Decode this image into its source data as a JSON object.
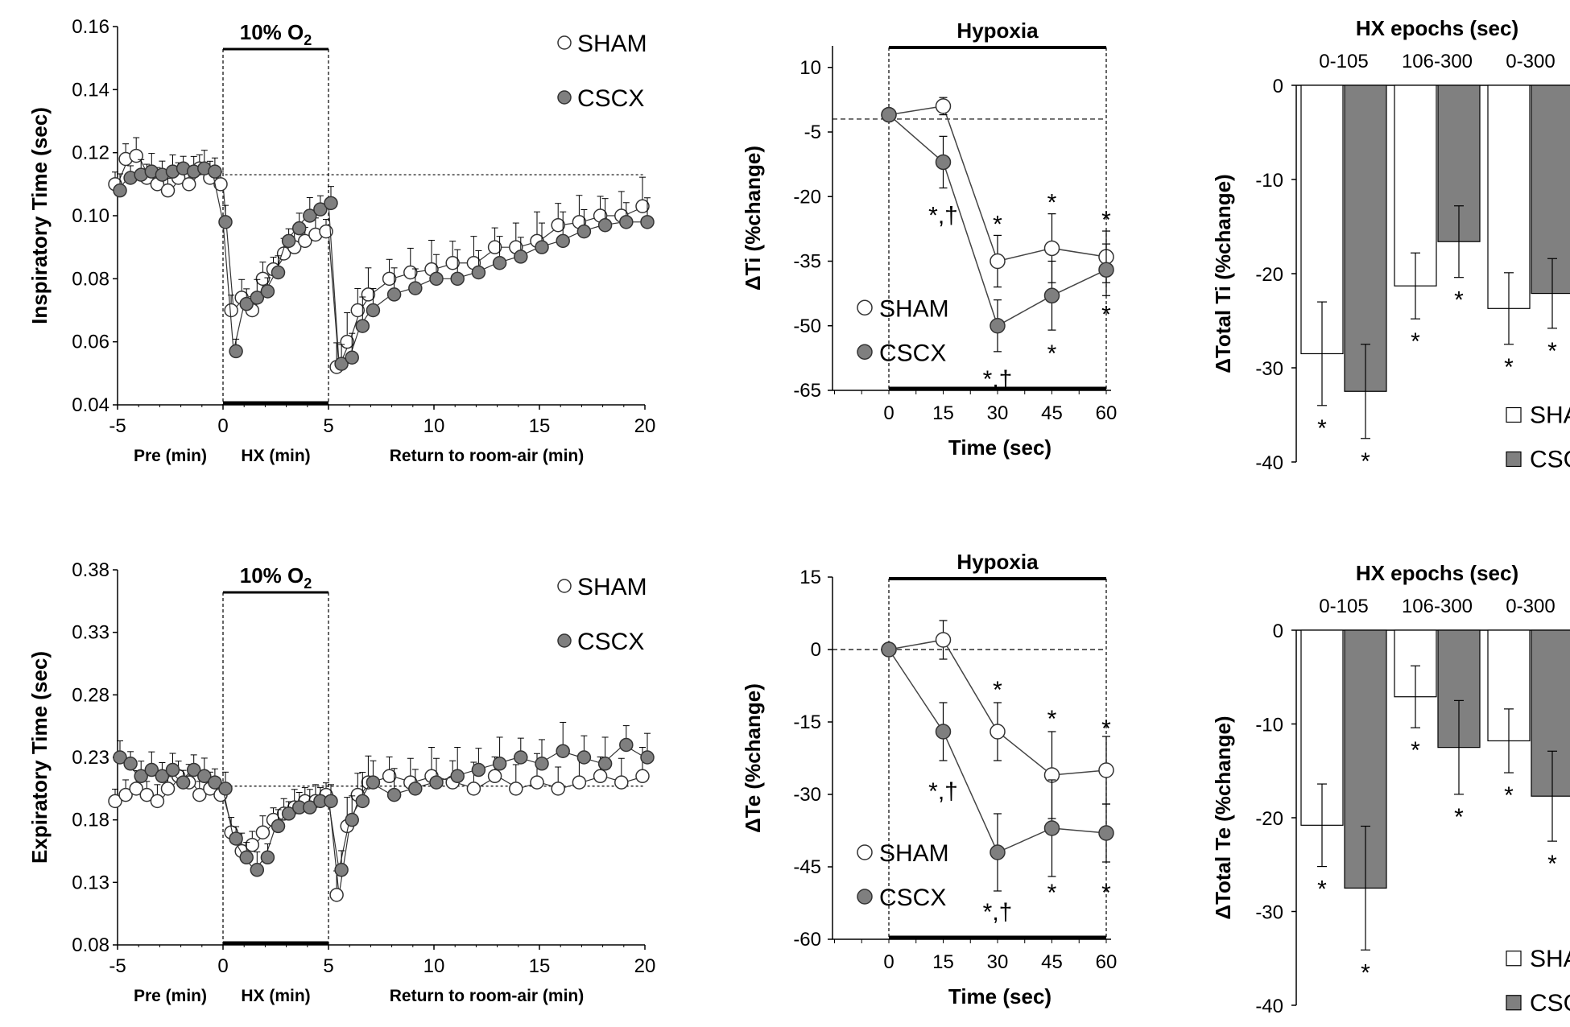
{
  "figure": {
    "legend": {
      "sham": "SHAM",
      "cscx": "CSCX"
    }
  },
  "chart_data": [
    {
      "id": "p1",
      "type": "scatter",
      "ylabel": "Inspiratory Time (sec)",
      "yticks": [
        "0.16",
        "0.14",
        "0.12",
        "0.10",
        "0.08",
        "0.06",
        "0.04"
      ],
      "xticks": [
        "-5",
        "0",
        "5",
        "10",
        "15",
        "20"
      ],
      "ylim": [
        0.04,
        0.16
      ],
      "xlim": [
        -5,
        20
      ],
      "baseline": 0.113,
      "stim_label": "10% O",
      "stim_sub": "2",
      "captions": {
        "pre": "Pre (min)",
        "hx": "HX (min)",
        "ret": "Return to room-air (min)"
      },
      "series": [
        {
          "name": "SHAM",
          "x": [
            -5,
            -4.5,
            -4,
            -3.5,
            -3,
            -2.5,
            -2,
            -1.5,
            -1,
            -0.5,
            0,
            0.5,
            1,
            1.5,
            2,
            2.5,
            3,
            3.5,
            4,
            4.5,
            5,
            5.5,
            6,
            6.5,
            7,
            8,
            9,
            10,
            11,
            12,
            13,
            14,
            15,
            16,
            17,
            18,
            19,
            20
          ],
          "y": [
            0.11,
            0.118,
            0.119,
            0.112,
            0.11,
            0.108,
            0.112,
            0.11,
            0.115,
            0.112,
            0.11,
            0.07,
            0.074,
            0.07,
            0.08,
            0.083,
            0.088,
            0.09,
            0.092,
            0.094,
            0.095,
            0.052,
            0.06,
            0.07,
            0.075,
            0.08,
            0.082,
            0.083,
            0.085,
            0.085,
            0.09,
            0.09,
            0.092,
            0.097,
            0.098,
            0.1,
            0.1,
            0.103
          ]
        },
        {
          "name": "CSCX",
          "x": [
            -5,
            -4.5,
            -4,
            -3.5,
            -3,
            -2.5,
            -2,
            -1.5,
            -1,
            -0.5,
            0,
            0.5,
            1,
            1.5,
            2,
            2.5,
            3,
            3.5,
            4,
            4.5,
            5,
            5.5,
            6,
            6.5,
            7,
            8,
            9,
            10,
            11,
            12,
            13,
            14,
            15,
            16,
            17,
            18,
            19,
            20
          ],
          "y": [
            0.108,
            0.112,
            0.113,
            0.114,
            0.113,
            0.114,
            0.115,
            0.114,
            0.115,
            0.114,
            0.098,
            0.057,
            0.072,
            0.074,
            0.076,
            0.082,
            0.092,
            0.096,
            0.1,
            0.102,
            0.104,
            0.053,
            0.055,
            0.065,
            0.07,
            0.075,
            0.077,
            0.08,
            0.08,
            0.082,
            0.085,
            0.087,
            0.09,
            0.092,
            0.095,
            0.097,
            0.098,
            0.098
          ]
        }
      ]
    },
    {
      "id": "p2",
      "type": "line",
      "ylabel": "ΔTi (%change)",
      "xlabel": "Time (sec)",
      "title": "Hypoxia",
      "x": [
        0,
        15,
        30,
        45,
        60
      ],
      "xticks": [
        "0",
        "15",
        "30",
        "45",
        "60"
      ],
      "yticks": [
        "10",
        "-5",
        "-20",
        "-35",
        "-50",
        "-65"
      ],
      "ylim": [
        -65,
        15
      ],
      "baseline": -2,
      "series": [
        {
          "name": "SHAM",
          "values": [
            -1,
            1,
            -35,
            -32,
            -34
          ],
          "err": [
            0,
            2,
            6,
            8,
            6
          ]
        },
        {
          "name": "CSCX",
          "values": [
            -1,
            -12,
            -50,
            -43,
            -37
          ],
          "err": [
            0,
            6,
            6,
            8,
            6
          ]
        }
      ],
      "annotations": [
        {
          "x": 15,
          "y": -24,
          "text": "*,†"
        },
        {
          "x": 30,
          "y": -26,
          "text": "*"
        },
        {
          "x": 30,
          "y": -62,
          "text": "*,†"
        },
        {
          "x": 45,
          "y": -21,
          "text": "*"
        },
        {
          "x": 45,
          "y": -56,
          "text": "*"
        },
        {
          "x": 60,
          "y": -25,
          "text": "*"
        },
        {
          "x": 60,
          "y": -47,
          "text": "*"
        }
      ]
    },
    {
      "id": "p3",
      "type": "bar",
      "ylabel": "ΔTotal Ti (%change)",
      "title": "HX epochs (sec)",
      "categories": [
        "0-105",
        "106-300",
        "0-300"
      ],
      "yticks": [
        "0",
        "-10",
        "-20",
        "-30",
        "-40"
      ],
      "ylim": [
        -40,
        0
      ],
      "series": [
        {
          "name": "SHAM",
          "values": [
            -28.5,
            -21.3,
            -23.7
          ],
          "err": [
            5.5,
            3.5,
            3.8
          ]
        },
        {
          "name": "CSCX",
          "values": [
            -32.5,
            -16.6,
            -22.1
          ],
          "err": [
            5.0,
            3.8,
            3.7
          ]
        }
      ],
      "annotation": "*"
    },
    {
      "id": "p4",
      "type": "scatter",
      "ylabel": "Expiratory Time (sec)",
      "yticks": [
        "0.38",
        "0.33",
        "0.28",
        "0.23",
        "0.18",
        "0.13",
        "0.08"
      ],
      "xticks": [
        "-5",
        "0",
        "5",
        "10",
        "15",
        "20"
      ],
      "ylim": [
        0.08,
        0.38
      ],
      "xlim": [
        -5,
        20
      ],
      "baseline": 0.207,
      "stim_label": "10% O",
      "stim_sub": "2",
      "captions": {
        "pre": "Pre (min)",
        "hx": "HX (min)",
        "ret": "Return to room-air (min)"
      },
      "series": [
        {
          "name": "SHAM",
          "x": [
            -5,
            -4.5,
            -4,
            -3.5,
            -3,
            -2.5,
            -2,
            -1.5,
            -1,
            -0.5,
            0,
            0.5,
            1,
            1.5,
            2,
            2.5,
            3,
            3.5,
            4,
            4.5,
            5,
            5.5,
            6,
            6.5,
            7,
            8,
            9,
            10,
            11,
            12,
            13,
            14,
            15,
            16,
            17,
            18,
            19,
            20
          ],
          "y": [
            0.195,
            0.2,
            0.205,
            0.2,
            0.195,
            0.205,
            0.215,
            0.21,
            0.2,
            0.205,
            0.2,
            0.17,
            0.155,
            0.16,
            0.17,
            0.18,
            0.185,
            0.19,
            0.195,
            0.195,
            0.2,
            0.12,
            0.175,
            0.2,
            0.21,
            0.215,
            0.21,
            0.215,
            0.21,
            0.205,
            0.215,
            0.205,
            0.21,
            0.205,
            0.21,
            0.215,
            0.21,
            0.215
          ]
        },
        {
          "name": "CSCX",
          "x": [
            -5,
            -4.5,
            -4,
            -3.5,
            -3,
            -2.5,
            -2,
            -1.5,
            -1,
            -0.5,
            0,
            0.5,
            1,
            1.5,
            2,
            2.5,
            3,
            3.5,
            4,
            4.5,
            5,
            5.5,
            6,
            6.5,
            7,
            8,
            9,
            10,
            11,
            12,
            13,
            14,
            15,
            16,
            17,
            18,
            19,
            20
          ],
          "y": [
            0.23,
            0.225,
            0.215,
            0.22,
            0.215,
            0.22,
            0.21,
            0.22,
            0.215,
            0.21,
            0.205,
            0.165,
            0.15,
            0.14,
            0.15,
            0.175,
            0.185,
            0.19,
            0.19,
            0.195,
            0.195,
            0.14,
            0.18,
            0.195,
            0.21,
            0.2,
            0.205,
            0.21,
            0.215,
            0.22,
            0.225,
            0.23,
            0.225,
            0.235,
            0.23,
            0.225,
            0.24,
            0.23
          ]
        }
      ]
    },
    {
      "id": "p5",
      "type": "line",
      "ylabel": "ΔTe (%change)",
      "xlabel": "Time (sec)",
      "title": "Hypoxia",
      "x": [
        0,
        15,
        30,
        45,
        60
      ],
      "xticks": [
        "0",
        "15",
        "30",
        "45",
        "60"
      ],
      "yticks": [
        "15",
        "0",
        "-15",
        "-30",
        "-45",
        "-60"
      ],
      "ylim": [
        -60,
        15
      ],
      "baseline": 0,
      "series": [
        {
          "name": "SHAM",
          "values": [
            0,
            2,
            -17,
            -26,
            -25
          ],
          "err": [
            0,
            4,
            6,
            9,
            7
          ]
        },
        {
          "name": "CSCX",
          "values": [
            0,
            -17,
            -42,
            -37,
            -38
          ],
          "err": [
            0,
            6,
            8,
            10,
            6
          ]
        }
      ],
      "annotations": [
        {
          "x": 15,
          "y": -29,
          "text": "*,†"
        },
        {
          "x": 30,
          "y": -8,
          "text": "*"
        },
        {
          "x": 30,
          "y": -54,
          "text": "*,†"
        },
        {
          "x": 45,
          "y": -14,
          "text": "*"
        },
        {
          "x": 45,
          "y": -50,
          "text": "*"
        },
        {
          "x": 60,
          "y": -16,
          "text": "*"
        },
        {
          "x": 60,
          "y": -50,
          "text": "*"
        }
      ]
    },
    {
      "id": "p6",
      "type": "bar",
      "ylabel": "ΔTotal Te (%change)",
      "title": "HX epochs (sec)",
      "categories": [
        "0-105",
        "106-300",
        "0-300"
      ],
      "yticks": [
        "0",
        "-10",
        "-20",
        "-30",
        "-40"
      ],
      "ylim": [
        -40,
        0
      ],
      "series": [
        {
          "name": "SHAM",
          "values": [
            -20.8,
            -7.1,
            -11.8
          ],
          "err": [
            4.4,
            3.3,
            3.4
          ]
        },
        {
          "name": "CSCX",
          "values": [
            -27.5,
            -12.5,
            -17.7
          ],
          "err": [
            6.6,
            5.0,
            4.8
          ]
        }
      ],
      "annotation": "*"
    }
  ]
}
